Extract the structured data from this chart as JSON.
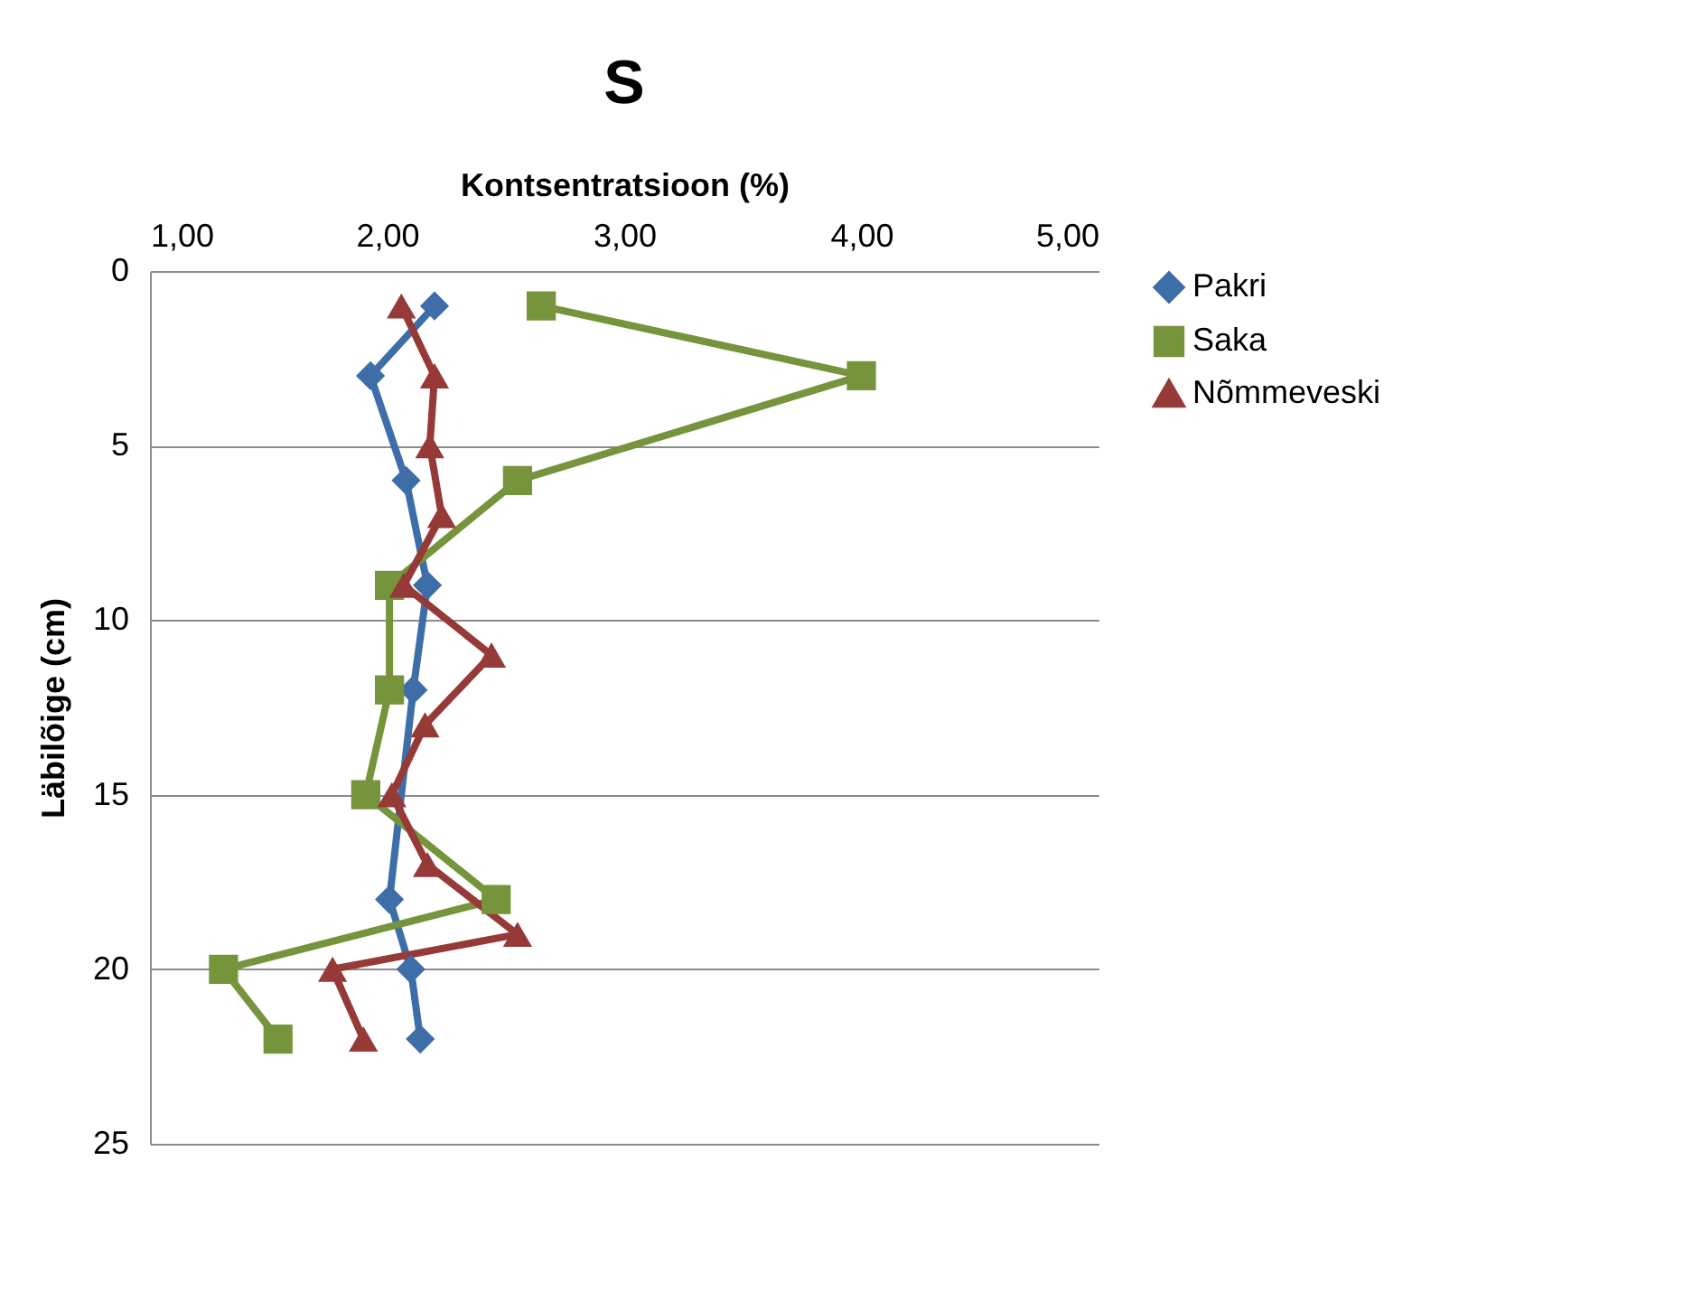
{
  "chart_data": {
    "type": "line",
    "title": "S",
    "xlabel": "Kontsentratsioon (%)",
    "ylabel": "Läbilõige (cm)",
    "xlim": [
      1,
      5
    ],
    "xticks": [
      {
        "value": 1,
        "label": "1,00"
      },
      {
        "value": 2,
        "label": "2,00"
      },
      {
        "value": 3,
        "label": "3,00"
      },
      {
        "value": 4,
        "label": "4,00"
      },
      {
        "value": 5,
        "label": "5,00"
      }
    ],
    "ylim": [
      25,
      0
    ],
    "yticks": [
      0,
      5,
      10,
      15,
      20,
      25
    ],
    "grid": "y",
    "legend": "right",
    "line_style": "solid",
    "series": [
      {
        "name": "Pakri",
        "color": "#3d6ea8",
        "marker": "diamond",
        "x": [
          2.2,
          1.93,
          2.08,
          2.17,
          2.11,
          null,
          2.01,
          2.1,
          2.14
        ],
        "values": [
          1,
          3,
          6,
          9,
          12,
          null,
          18,
          20,
          22
        ]
      },
      {
        "name": "Saka",
        "color": "#76943c",
        "marker": "square",
        "x": [
          2.65,
          4.0,
          2.55,
          2.01,
          2.01,
          1.91,
          2.46,
          1.31,
          1.54
        ],
        "values": [
          1,
          3,
          6,
          9,
          12,
          15,
          18,
          20,
          22
        ]
      },
      {
        "name": "Nõmmeveski",
        "color": "#963a38",
        "marker": "triangle",
        "x": [
          2.06,
          2.2,
          2.18,
          2.23,
          2.07,
          2.44,
          2.16,
          2.02,
          2.17,
          2.55,
          1.77,
          1.9
        ],
        "values": [
          1,
          3,
          5,
          7,
          9,
          11,
          13,
          15,
          17,
          19,
          20,
          22
        ]
      }
    ]
  }
}
